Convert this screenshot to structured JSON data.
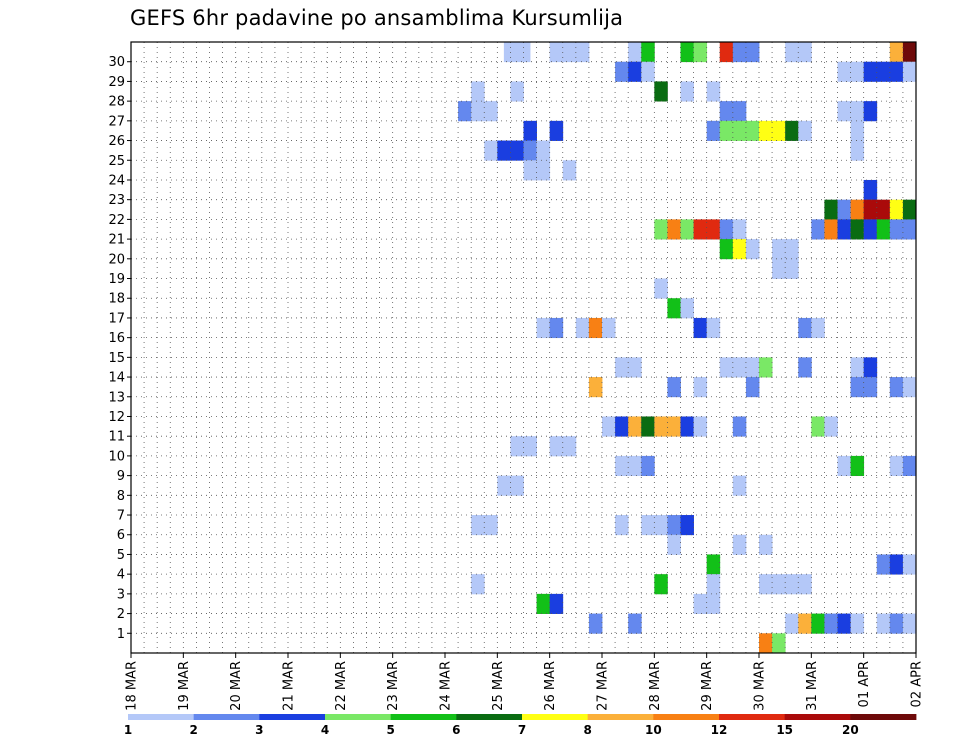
{
  "chart_data": {
    "type": "heatmap",
    "title": "GEFS 6hr padavine po ansamblima Kursumlija",
    "xlabel": "",
    "ylabel": "",
    "x_tick_labels": [
      "18 MAR",
      "19 MAR",
      "20 MAR",
      "21 MAR",
      "22 MAR",
      "23 MAR",
      "24 MAR",
      "25 MAR",
      "26 MAR",
      "27 MAR",
      "28 MAR",
      "29 MAR",
      "30 MAR",
      "31 MAR",
      "01 APR",
      "02 APR"
    ],
    "y_tick_labels": [
      "1",
      "2",
      "3",
      "4",
      "5",
      "6",
      "7",
      "8",
      "9",
      "10",
      "11",
      "12",
      "13",
      "14",
      "15",
      "16",
      "17",
      "18",
      "19",
      "20",
      "21",
      "22",
      "23",
      "24",
      "25",
      "26",
      "27",
      "28",
      "29",
      "30"
    ],
    "x_range": [
      0,
      60
    ],
    "y_range": [
      0,
      30
    ],
    "grid": true,
    "legend": {
      "placement": "bottom",
      "labels": [
        "1",
        "2",
        "3",
        "4",
        "5",
        "6",
        "7",
        "8",
        "10",
        "12",
        "15",
        "20"
      ],
      "colors": [
        "#b4c8f8",
        "#6488ee",
        "#1a3ee0",
        "#7ae866",
        "#12c018",
        "#0a6c12",
        "#ffff14",
        "#fbb03a",
        "#f88014",
        "#e02a10",
        "#aa0a0a",
        "#6e0a0a"
      ]
    },
    "cells": [
      {
        "m": 30,
        "s": [
          [
            28.5,
            2,
            0
          ],
          [
            32,
            3,
            0
          ],
          [
            38,
            1,
            0
          ],
          [
            39,
            1,
            4
          ],
          [
            42,
            1,
            4
          ],
          [
            43,
            1,
            3
          ],
          [
            45,
            1,
            9
          ],
          [
            46,
            2,
            1
          ],
          [
            50,
            2,
            0
          ],
          [
            58,
            1,
            7
          ],
          [
            59,
            1,
            11
          ]
        ]
      },
      {
        "m": 29,
        "s": [
          [
            37,
            1,
            1
          ],
          [
            38,
            1,
            2
          ],
          [
            39,
            1,
            0
          ],
          [
            54,
            2,
            0
          ],
          [
            56,
            3,
            2
          ],
          [
            59,
            1,
            0
          ]
        ]
      },
      {
        "m": 28,
        "s": [
          [
            26,
            1,
            0
          ],
          [
            29,
            1,
            0
          ],
          [
            40,
            1,
            5
          ],
          [
            42,
            1,
            0
          ],
          [
            44,
            1,
            0
          ]
        ]
      },
      {
        "m": 27,
        "s": [
          [
            25,
            1,
            1
          ],
          [
            26,
            2,
            0
          ],
          [
            45,
            2,
            1
          ],
          [
            54,
            2,
            0
          ],
          [
            56,
            1,
            2
          ]
        ]
      },
      {
        "m": 26,
        "s": [
          [
            30,
            1,
            2
          ],
          [
            32,
            1,
            2
          ],
          [
            44,
            1,
            1
          ],
          [
            45,
            3,
            3
          ],
          [
            48,
            2,
            6
          ],
          [
            50,
            1,
            5
          ],
          [
            51,
            1,
            0
          ],
          [
            55,
            1,
            0
          ]
        ]
      },
      {
        "m": 25,
        "s": [
          [
            27,
            1,
            0
          ],
          [
            28,
            2,
            2
          ],
          [
            30,
            1,
            1
          ],
          [
            31,
            1,
            0
          ],
          [
            55,
            1,
            0
          ]
        ]
      },
      {
        "m": 24,
        "s": [
          [
            30,
            2,
            0
          ],
          [
            33,
            1,
            0
          ]
        ]
      },
      {
        "m": 23,
        "s": [
          [
            56,
            1,
            2
          ]
        ]
      },
      {
        "m": 22,
        "s": [
          [
            53,
            1,
            5
          ],
          [
            54,
            1,
            1
          ],
          [
            55,
            1,
            8
          ],
          [
            56,
            2,
            10
          ],
          [
            58,
            1,
            6
          ],
          [
            59,
            1,
            5
          ]
        ]
      },
      {
        "m": 21,
        "s": [
          [
            40,
            1,
            3
          ],
          [
            41,
            1,
            8
          ],
          [
            42,
            1,
            3
          ],
          [
            43,
            2,
            9
          ],
          [
            45,
            1,
            1
          ],
          [
            46,
            1,
            0
          ],
          [
            52,
            1,
            1
          ],
          [
            53,
            1,
            8
          ],
          [
            54,
            1,
            2
          ],
          [
            55,
            1,
            5
          ],
          [
            56,
            1,
            2
          ],
          [
            57,
            1,
            4
          ],
          [
            58,
            2,
            1
          ]
        ]
      },
      {
        "m": 20,
        "s": [
          [
            45,
            1,
            4
          ],
          [
            46,
            1,
            6
          ],
          [
            47,
            1,
            0
          ],
          [
            49,
            2,
            0
          ]
        ]
      },
      {
        "m": 19,
        "s": [
          [
            49,
            2,
            0
          ]
        ]
      },
      {
        "m": 18,
        "s": [
          [
            40,
            1,
            0
          ]
        ]
      },
      {
        "m": 17,
        "s": [
          [
            41,
            1,
            4
          ],
          [
            42,
            1,
            0
          ]
        ]
      },
      {
        "m": 16,
        "s": [
          [
            31,
            1,
            0
          ],
          [
            32,
            1,
            1
          ],
          [
            34,
            1,
            0
          ],
          [
            35,
            1,
            8
          ],
          [
            36,
            1,
            0
          ],
          [
            43,
            1,
            2
          ],
          [
            44,
            1,
            0
          ],
          [
            51,
            1,
            1
          ],
          [
            52,
            1,
            0
          ]
        ]
      },
      {
        "m": 15,
        "s": []
      },
      {
        "m": 14,
        "s": [
          [
            37,
            2,
            0
          ],
          [
            45,
            3,
            0
          ],
          [
            48,
            1,
            3
          ],
          [
            51,
            1,
            1
          ],
          [
            55,
            1,
            0
          ],
          [
            56,
            1,
            2
          ]
        ]
      },
      {
        "m": 13,
        "s": [
          [
            35,
            1,
            7
          ],
          [
            41,
            1,
            1
          ],
          [
            43,
            1,
            0
          ],
          [
            47,
            1,
            1
          ],
          [
            55,
            2,
            1
          ],
          [
            58,
            1,
            1
          ],
          [
            59,
            1,
            0
          ]
        ]
      },
      {
        "m": 12,
        "s": []
      },
      {
        "m": 11,
        "s": [
          [
            36,
            1,
            0
          ],
          [
            37,
            1,
            2
          ],
          [
            38,
            1,
            7
          ],
          [
            39,
            1,
            5
          ],
          [
            40,
            2,
            7
          ],
          [
            42,
            1,
            2
          ],
          [
            43,
            1,
            0
          ],
          [
            46,
            1,
            1
          ],
          [
            52,
            1,
            3
          ],
          [
            53,
            1,
            0
          ]
        ]
      },
      {
        "m": 10,
        "s": [
          [
            29,
            2,
            0
          ],
          [
            32,
            2,
            0
          ]
        ]
      },
      {
        "m": 9,
        "s": [
          [
            37,
            2,
            0
          ],
          [
            39,
            1,
            1
          ],
          [
            54,
            1,
            0
          ],
          [
            55,
            1,
            4
          ],
          [
            58,
            1,
            0
          ],
          [
            59,
            1,
            1
          ]
        ]
      },
      {
        "m": 8,
        "s": [
          [
            28,
            2,
            0
          ],
          [
            46,
            1,
            0
          ]
        ]
      },
      {
        "m": 7,
        "s": []
      },
      {
        "m": 6,
        "s": [
          [
            26,
            2,
            0
          ],
          [
            37,
            1,
            0
          ],
          [
            39,
            2,
            0
          ],
          [
            41,
            1,
            1
          ],
          [
            42,
            1,
            2
          ]
        ]
      },
      {
        "m": 5,
        "s": [
          [
            41,
            1,
            0
          ],
          [
            46,
            1,
            0
          ],
          [
            48,
            1,
            0
          ]
        ]
      },
      {
        "m": 4,
        "s": [
          [
            44,
            1,
            4
          ],
          [
            57,
            1,
            1
          ],
          [
            58,
            1,
            2
          ],
          [
            59,
            1,
            0
          ]
        ]
      },
      {
        "m": 3,
        "s": [
          [
            26,
            1,
            0
          ],
          [
            40,
            1,
            4
          ],
          [
            44,
            1,
            0
          ],
          [
            48,
            4,
            0
          ]
        ]
      },
      {
        "m": 2,
        "s": [
          [
            31,
            1,
            4
          ],
          [
            32,
            1,
            2
          ],
          [
            43,
            2,
            0
          ]
        ]
      },
      {
        "m": 1,
        "s": [
          [
            35,
            1,
            1
          ],
          [
            38,
            1,
            1
          ],
          [
            50,
            1,
            0
          ],
          [
            51,
            1,
            7
          ],
          [
            52,
            1,
            4
          ],
          [
            53,
            1,
            1
          ],
          [
            54,
            1,
            2
          ],
          [
            55,
            1,
            0
          ],
          [
            57,
            1,
            0
          ],
          [
            58,
            1,
            1
          ],
          [
            59,
            1,
            0
          ]
        ]
      },
      {
        "m": 0,
        "s": [
          [
            48,
            1,
            8
          ],
          [
            49,
            1,
            3
          ]
        ]
      }
    ]
  }
}
